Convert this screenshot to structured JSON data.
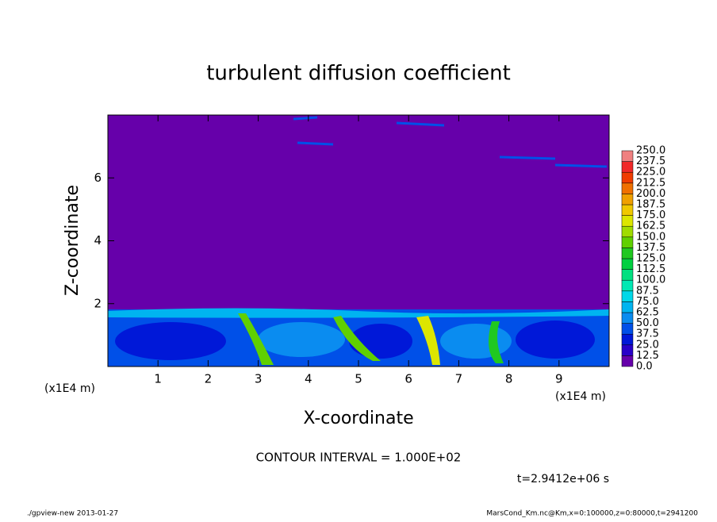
{
  "chart_data": {
    "type": "contour",
    "title": "turbulent diffusion coefficient",
    "x_label": "X-coordinate",
    "y_label": "Z-coordinate",
    "x_unit": "(x1E4 m)",
    "y_unit": "(x1E4 m)",
    "xlim": [
      0,
      10
    ],
    "xticks": [
      1,
      2,
      3,
      4,
      5,
      6,
      7,
      8,
      9
    ],
    "ylim": [
      0,
      8
    ],
    "yticks": [
      2,
      4,
      6
    ],
    "colorbar": {
      "levels": [
        {
          "value": 0,
          "label": "0.0"
        },
        {
          "value": 12.5,
          "label": "12.5"
        },
        {
          "value": 25,
          "label": "25.0"
        },
        {
          "value": 37.5,
          "label": "37.5"
        },
        {
          "value": 50,
          "label": "50.0"
        },
        {
          "value": 62.5,
          "label": "62.5"
        },
        {
          "value": 75,
          "label": "75.0"
        },
        {
          "value": 87.5,
          "label": "87.5"
        },
        {
          "value": 100,
          "label": "100.0"
        },
        {
          "value": 112.5,
          "label": "112.5"
        },
        {
          "value": 125,
          "label": "125.0"
        },
        {
          "value": 137.5,
          "label": "137.5"
        },
        {
          "value": 150,
          "label": "150.0"
        },
        {
          "value": 162.5,
          "label": "162.5"
        },
        {
          "value": 175,
          "label": "175.0"
        },
        {
          "value": 187.5,
          "label": "187.5"
        },
        {
          "value": 200,
          "label": "200.0"
        },
        {
          "value": 212.5,
          "label": "212.5"
        },
        {
          "value": 225,
          "label": "225.0"
        },
        {
          "value": 237.5,
          "label": "237.5"
        },
        {
          "value": 250,
          "label": "250.0"
        }
      ],
      "colors": [
        "#6600aa",
        "#2800c8",
        "#0018d8",
        "#0050e8",
        "#0a8cf0",
        "#00b4f0",
        "#00d8e8",
        "#00e8b4",
        "#00e080",
        "#00d040",
        "#20c820",
        "#60d000",
        "#a0dc00",
        "#dce600",
        "#f0c800",
        "#f0a000",
        "#f07000",
        "#f03c00",
        "#f02828",
        "#f08080"
      ]
    },
    "contour_interval": "CONTOUR INTERVAL = 1.000E+02",
    "time_label": "t=2.9412e+06 s",
    "footer_left": "./gpview-new  2013-01-27",
    "footer_right": "MarsCond_Km.nc@Km,x=0:100000,z=0:80000,t=2941200"
  }
}
